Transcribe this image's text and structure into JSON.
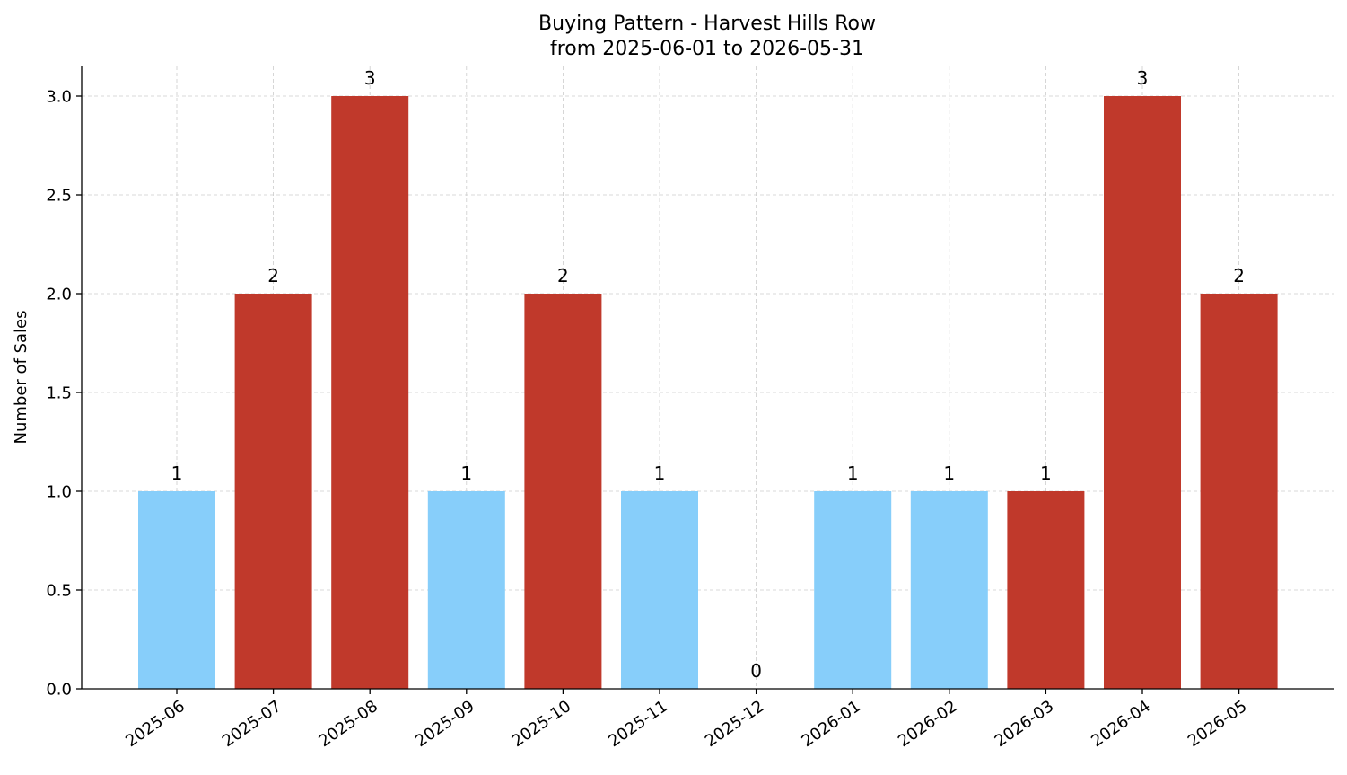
{
  "chart_data": {
    "type": "bar",
    "title": "Buying Pattern - Harvest Hills Row",
    "subtitle": "from 2025-06-01 to 2026-05-31",
    "xlabel": "",
    "ylabel": "Number of Sales",
    "categories": [
      "2025-06",
      "2025-07",
      "2025-08",
      "2025-09",
      "2025-10",
      "2025-11",
      "2025-12",
      "2026-01",
      "2026-02",
      "2026-03",
      "2026-04",
      "2026-05"
    ],
    "values": [
      1,
      2,
      3,
      1,
      2,
      1,
      0,
      1,
      1,
      1,
      3,
      2
    ],
    "bar_colors": [
      "#87CEFA",
      "#C0392B",
      "#C0392B",
      "#87CEFA",
      "#C0392B",
      "#87CEFA",
      "#87CEFA",
      "#87CEFA",
      "#87CEFA",
      "#C0392B",
      "#C0392B",
      "#C0392B"
    ],
    "ylim": [
      0,
      3.15
    ],
    "yticks": [
      "0.0",
      "0.5",
      "1.0",
      "1.5",
      "2.0",
      "2.5",
      "3.0"
    ],
    "ytick_values": [
      0,
      0.5,
      1.0,
      1.5,
      2.0,
      2.5,
      3.0
    ],
    "grid": true,
    "legend": "none"
  }
}
